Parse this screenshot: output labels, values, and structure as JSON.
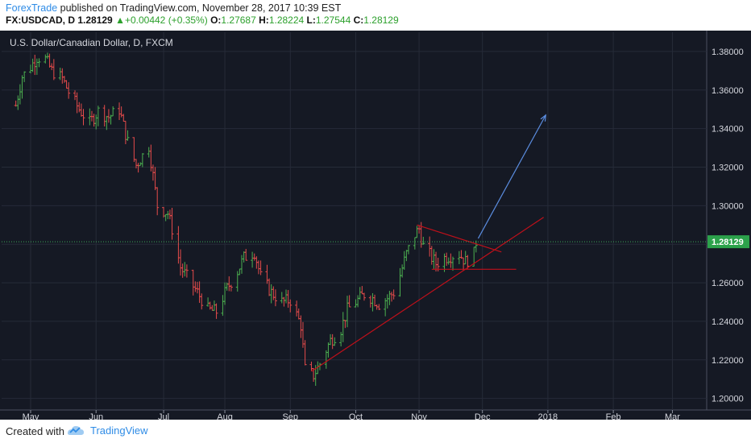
{
  "header": {
    "author": "ForexTrade",
    "published_text": "published on TradingView.com, November 28, 2017 10:39 EST",
    "symbol": "FX:USDCAD, D",
    "last": "1.28129",
    "change": "+0.00442 (+0.35%)",
    "open_label": "O:",
    "open": "1.27687",
    "high_label": "H:",
    "high": "1.28224",
    "low_label": "L:",
    "low": "1.27544",
    "close_label": "C:",
    "close": "1.28129",
    "change_arrow": "up-arrow-icon"
  },
  "chart_data": {
    "type": "ohlc",
    "title": "U.S. Dollar/Canadian Dollar, D, FXCM",
    "instrument": "USDCAD",
    "timeframe": "D",
    "xlabels": [
      "May",
      "Jun",
      "Jul",
      "Aug",
      "Sep",
      "Oct",
      "Nov",
      "Dec",
      "2018",
      "Feb",
      "Mar"
    ],
    "yticks": [
      "1.38000",
      "1.36000",
      "1.34000",
      "1.32000",
      "1.30000",
      "1.28000",
      "1.26000",
      "1.24000",
      "1.22000",
      "1.20000"
    ],
    "ylim": [
      1.194,
      1.39
    ],
    "current_price": "1.28129",
    "grid": true,
    "colors": {
      "up": "#4caf50",
      "down": "#e64b4b",
      "background": "#151924",
      "grid": "#262b38",
      "price_badge": "#2ca24b",
      "trend": "#c0101a",
      "projection": "#5b8de0"
    },
    "approx_close_path": [
      [
        "2017-04-24",
        1.352
      ],
      [
        "2017-04-27",
        1.367
      ],
      [
        "2017-05-01",
        1.372
      ],
      [
        "2017-05-04",
        1.377
      ],
      [
        "2017-05-08",
        1.376
      ],
      [
        "2017-05-11",
        1.37
      ],
      [
        "2017-05-16",
        1.366
      ],
      [
        "2017-05-19",
        1.359
      ],
      [
        "2017-05-24",
        1.35
      ],
      [
        "2017-05-29",
        1.343
      ],
      [
        "2017-06-02",
        1.349
      ],
      [
        "2017-06-07",
        1.346
      ],
      [
        "2017-06-12",
        1.35
      ],
      [
        "2017-06-16",
        1.333
      ],
      [
        "2017-06-20",
        1.321
      ],
      [
        "2017-06-26",
        1.331
      ],
      [
        "2017-06-30",
        1.3
      ],
      [
        "2017-07-05",
        1.296
      ],
      [
        "2017-07-07",
        1.288
      ],
      [
        "2017-07-11",
        1.268
      ],
      [
        "2017-07-14",
        1.263
      ],
      [
        "2017-07-19",
        1.255
      ],
      [
        "2017-07-24",
        1.246
      ],
      [
        "2017-07-28",
        1.245
      ],
      [
        "2017-08-02",
        1.257
      ],
      [
        "2017-08-07",
        1.266
      ],
      [
        "2017-08-10",
        1.273
      ],
      [
        "2017-08-15",
        1.276
      ],
      [
        "2017-08-18",
        1.263
      ],
      [
        "2017-08-23",
        1.255
      ],
      [
        "2017-08-28",
        1.25
      ],
      [
        "2017-09-01",
        1.251
      ],
      [
        "2017-09-06",
        1.238
      ],
      [
        "2017-09-08",
        1.215
      ],
      [
        "2017-09-12",
        1.212
      ],
      [
        "2017-09-15",
        1.218
      ],
      [
        "2017-09-20",
        1.23
      ],
      [
        "2017-09-25",
        1.236
      ],
      [
        "2017-09-28",
        1.246
      ],
      [
        "2017-10-02",
        1.25
      ],
      [
        "2017-10-06",
        1.254
      ],
      [
        "2017-10-10",
        1.252
      ],
      [
        "2017-10-13",
        1.249
      ],
      [
        "2017-10-17",
        1.252
      ],
      [
        "2017-10-20",
        1.255
      ],
      [
        "2017-10-23",
        1.264
      ],
      [
        "2017-10-26",
        1.275
      ],
      [
        "2017-10-30",
        1.285
      ],
      [
        "2017-11-01",
        1.288
      ],
      [
        "2017-11-03",
        1.279
      ],
      [
        "2017-11-07",
        1.273
      ],
      [
        "2017-11-09",
        1.27
      ],
      [
        "2017-11-13",
        1.273
      ],
      [
        "2017-11-16",
        1.274
      ],
      [
        "2017-11-20",
        1.275
      ],
      [
        "2017-11-23",
        1.271
      ],
      [
        "2017-11-27",
        1.275
      ],
      [
        "2017-11-28",
        1.28129
      ]
    ],
    "drawings": [
      {
        "kind": "trendline",
        "from": [
          "2017-09-11",
          1.214
        ],
        "to": [
          "2017-12-30",
          1.294
        ],
        "color": "#c0101a"
      },
      {
        "kind": "trendline",
        "from": [
          "2017-10-31",
          1.29
        ],
        "to": [
          "2017-12-10",
          1.276
        ],
        "color": "#c0101a"
      },
      {
        "kind": "horizontal",
        "from": [
          "2017-11-07",
          1.267
        ],
        "to": [
          "2017-12-17",
          1.267
        ],
        "color": "#c0101a"
      },
      {
        "kind": "arrow",
        "from": [
          "2017-11-29",
          1.283
        ],
        "to": [
          "2017-12-31",
          1.347
        ],
        "color": "#5b8de0"
      }
    ]
  },
  "footer": {
    "created_with": "Created with",
    "brand": "TradingView",
    "logo_icon": "tradingview-cloud-icon"
  }
}
